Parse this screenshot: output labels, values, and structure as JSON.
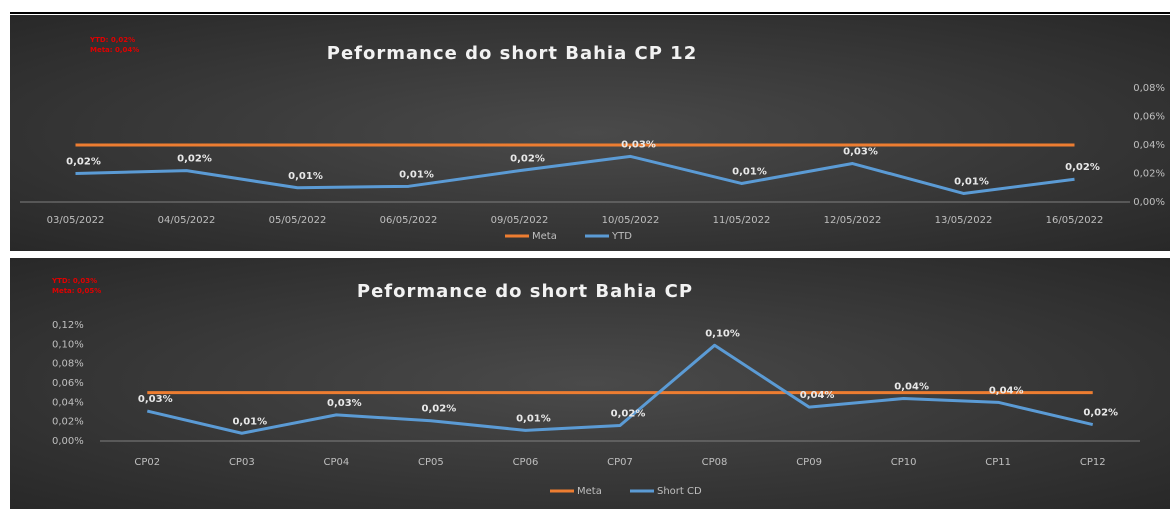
{
  "chart_data": [
    {
      "type": "line",
      "title": "Peformance do short Bahia CP 12",
      "annotations": [
        "YTD: 0,02%",
        "Meta: 0,04%"
      ],
      "categories": [
        "03/05/2022",
        "04/05/2022",
        "05/05/2022",
        "06/05/2022",
        "09/05/2022",
        "10/05/2022",
        "11/05/2022",
        "12/05/2022",
        "13/05/2022",
        "16/05/2022"
      ],
      "series": [
        {
          "name": "Meta",
          "color": "#ed7d31",
          "values": [
            0.04,
            0.04,
            0.04,
            0.04,
            0.04,
            0.04,
            0.04,
            0.04,
            0.04,
            0.04
          ]
        },
        {
          "name": "YTD",
          "color": "#5b9bd5",
          "values": [
            0.02,
            0.022,
            0.01,
            0.011,
            0.022,
            0.032,
            0.013,
            0.027,
            0.006,
            0.016
          ],
          "value_labels": [
            "0,02%",
            "0,02%",
            "0,01%",
            "0,01%",
            "0,02%",
            "0,03%",
            "0,01%",
            "0,03%",
            "0,01%",
            "0,02%"
          ]
        }
      ],
      "ylim": [
        0,
        0.08
      ],
      "yticks": [
        {
          "value": 0,
          "label": "0,00%"
        },
        {
          "value": 0.02,
          "label": "0,02%"
        },
        {
          "value": 0.04,
          "label": "0,04%"
        },
        {
          "value": 0.06,
          "label": "0,06%"
        },
        {
          "value": 0.08,
          "label": "0,08%"
        }
      ]
    },
    {
      "type": "line",
      "title": "Peformance do short Bahia CP",
      "annotations": [
        "YTD: 0,03%",
        "Meta: 0,05%"
      ],
      "categories": [
        "CP02",
        "CP03",
        "CP04",
        "CP05",
        "CP06",
        "CP07",
        "CP08",
        "CP09",
        "CP10",
        "CP11",
        "CP12"
      ],
      "series": [
        {
          "name": "Meta",
          "color": "#ed7d31",
          "values": [
            0.05,
            0.05,
            0.05,
            0.05,
            0.05,
            0.05,
            0.05,
            0.05,
            0.05,
            0.05,
            0.05
          ]
        },
        {
          "name": "Short CD",
          "color": "#5b9bd5",
          "values": [
            0.031,
            0.008,
            0.027,
            0.021,
            0.011,
            0.016,
            0.099,
            0.035,
            0.044,
            0.04,
            0.017
          ],
          "value_labels": [
            "0,03%",
            "0,01%",
            "0,03%",
            "0,02%",
            "0,01%",
            "0,02%",
            "0,10%",
            "0,04%",
            "0,04%",
            "0,04%",
            "0,02%"
          ]
        }
      ],
      "ylim": [
        0,
        0.12
      ],
      "yticks": [
        {
          "value": 0,
          "label": "0,00%"
        },
        {
          "value": 0.02,
          "label": "0,02%"
        },
        {
          "value": 0.04,
          "label": "0,04%"
        },
        {
          "value": 0.06,
          "label": "0,06%"
        },
        {
          "value": 0.08,
          "label": "0,08%"
        },
        {
          "value": 0.1,
          "label": "0,10%"
        },
        {
          "value": 0.12,
          "label": "0,12%"
        }
      ]
    }
  ]
}
